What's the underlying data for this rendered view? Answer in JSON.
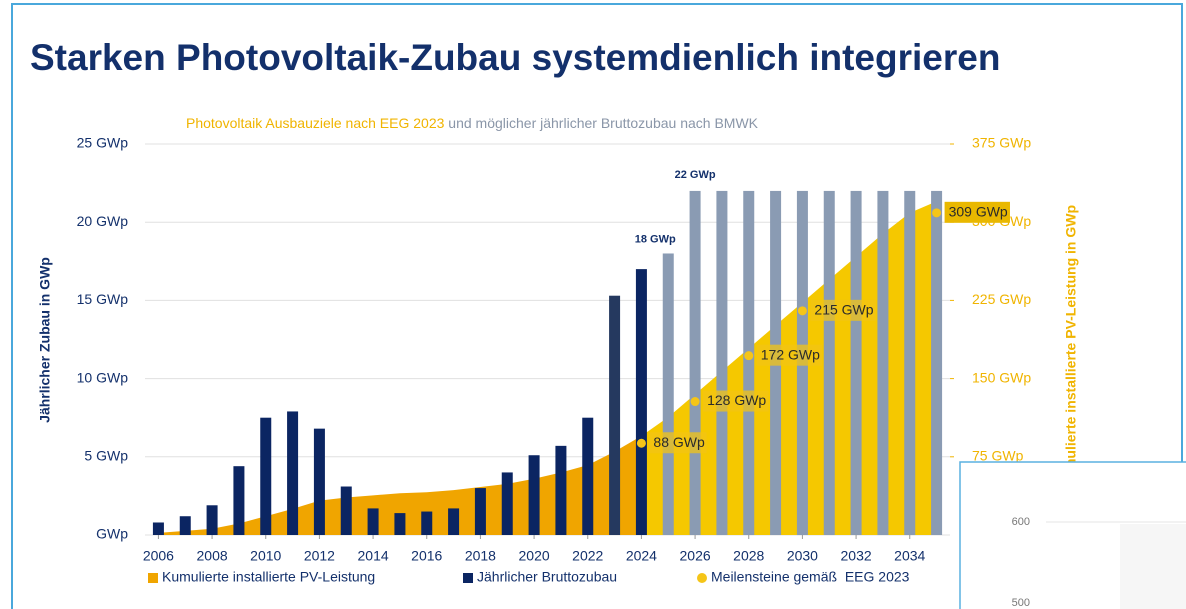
{
  "chart_data": {
    "type": "bar",
    "title": "Starken Photovoltaik-Zubau systemdienlich integrieren",
    "subtitle": [
      {
        "text": "Photovoltaik Ausbauziele nach EEG 2023",
        "color": "#f0b400"
      },
      {
        "text": " und möglicher jährlicher Bruttozubau nach BMWK",
        "color": "#8a96a8"
      }
    ],
    "y_label": "Jährlicher Zubau in GWp",
    "y2_label": "Kumulierte installierte PV-Leistung in GWp",
    "x": [
      2006,
      2007,
      2008,
      2009,
      2010,
      2011,
      2012,
      2013,
      2014,
      2015,
      2016,
      2017,
      2018,
      2019,
      2020,
      2021,
      2022,
      2023,
      2024,
      2025,
      2026,
      2027,
      2028,
      2029,
      2030,
      2031,
      2032,
      2033,
      2034,
      2035
    ],
    "xlim": [
      2005.5,
      2035.5
    ],
    "xticks": [
      2006,
      2008,
      2010,
      2012,
      2014,
      2016,
      2018,
      2020,
      2022,
      2024,
      2026,
      2028,
      2030,
      2032,
      2034
    ],
    "ylim": [
      0,
      25
    ],
    "yticks": [
      {
        "value": 0,
        "label": "GWp"
      },
      {
        "value": 5,
        "label": "5 GWp"
      },
      {
        "value": 10,
        "label": "10 GWp"
      },
      {
        "value": 15,
        "label": "15 GWp"
      },
      {
        "value": 20,
        "label": "20 GWp"
      },
      {
        "value": 25,
        "label": "25 GWp"
      }
    ],
    "y2lim": [
      0,
      375
    ],
    "y2ticks": [
      {
        "value": 75,
        "label": "75 GWp"
      },
      {
        "value": 150,
        "label": "150 GWp"
      },
      {
        "value": 225,
        "label": "225 GWp"
      },
      {
        "value": 300,
        "label": "300 GWp"
      },
      {
        "value": 375,
        "label": "375 GWp"
      }
    ],
    "grid": true,
    "series": [
      {
        "name": "Kumulierte installierte PV-Leistung",
        "type": "area",
        "axis": "y2",
        "color": "#f0a500",
        "forecast_color": "#f5c800",
        "values": [
          2,
          4,
          6,
          11,
          18,
          25,
          33,
          36,
          38,
          40,
          41,
          43,
          46,
          49,
          54,
          60,
          67,
          80,
          95,
          null,
          null,
          null,
          null,
          null,
          null,
          null,
          null,
          null,
          null,
          null
        ],
        "forecast_values": [
          null,
          null,
          null,
          null,
          null,
          null,
          null,
          null,
          null,
          null,
          null,
          null,
          null,
          null,
          null,
          null,
          null,
          null,
          95,
          113,
          135,
          157,
          179,
          201,
          223,
          245,
          267,
          289,
          309,
          320
        ]
      },
      {
        "name": "Jährlicher Bruttozubau",
        "type": "bar",
        "color": "#0b2562",
        "values": [
          0.8,
          1.2,
          1.9,
          4.4,
          7.5,
          7.9,
          6.8,
          3.1,
          1.7,
          1.4,
          1.5,
          1.7,
          3.0,
          4.0,
          5.1,
          5.7,
          7.5,
          15.3,
          17.0,
          18,
          22,
          22,
          22,
          22,
          22,
          22,
          22,
          22,
          22,
          22
        ],
        "colors": [
          "#0b2562",
          "#0b2562",
          "#0b2562",
          "#0b2562",
          "#0b2562",
          "#0b2562",
          "#0b2562",
          "#0b2562",
          "#0b2562",
          "#0b2562",
          "#0b2562",
          "#0b2562",
          "#0b2562",
          "#0b2562",
          "#0b2562",
          "#0b2562",
          "#0b2562",
          "#25395f",
          "#0b2562",
          "#8a9bb3",
          "#8a9bb3",
          "#8a9bb3",
          "#8a9bb3",
          "#8a9bb3",
          "#8a9bb3",
          "#8a9bb3",
          "#8a9bb3",
          "#8a9bb3",
          "#8a9bb3",
          "#8a9bb3"
        ],
        "value_labels": [
          null,
          null,
          null,
          null,
          null,
          null,
          null,
          null,
          null,
          null,
          null,
          null,
          null,
          null,
          null,
          null,
          null,
          null,
          null,
          "18 GWp",
          "22 GWp",
          null,
          null,
          null,
          null,
          null,
          null,
          null,
          null,
          null
        ]
      },
      {
        "name": "Meilensteine gemäß  EEG 2023",
        "type": "points",
        "axis": "y2",
        "color": "#f5c518",
        "x": [
          2024,
          2026,
          2028,
          2030,
          2035
        ],
        "values": [
          88,
          128,
          172,
          215,
          309
        ],
        "value_labels": [
          "88 GWp",
          "128 GWp",
          "172 GWp",
          "215 GWp",
          "309 GWp"
        ]
      }
    ]
  },
  "inset": {
    "labels": [
      "600",
      "500"
    ]
  }
}
